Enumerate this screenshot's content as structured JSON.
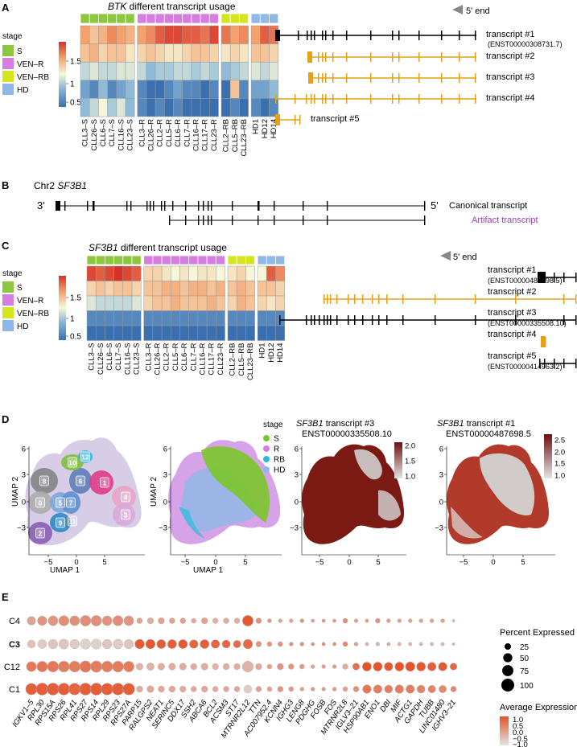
{
  "panelA": {
    "letter": "A",
    "title_gene": "BTK",
    "title_rest": " different transcript usage",
    "five_prime": "5' end",
    "legend_title": "stage",
    "legend": [
      {
        "label": "S",
        "color": "#8dc63f"
      },
      {
        "label": "VEN–R",
        "color": "#d57ee0"
      },
      {
        "label": "VEN–RB",
        "color": "#d6e61e"
      },
      {
        "label": "HD",
        "color": "#8fb8e6"
      }
    ],
    "scale_ticks": [
      "1.5",
      "1",
      "0.5"
    ],
    "groups": [
      {
        "stage": "S",
        "samples": [
          "CLL3–S",
          "CLL26–S",
          "CLL6–S",
          "CLL7–S",
          "CLL16–S",
          "CLL23–S"
        ]
      },
      {
        "stage": "VEN–R",
        "samples": [
          "CLL3–R",
          "CLL26–R",
          "CLL2–R",
          "CLL5–R",
          "CLL6–R",
          "CLL7–R",
          "CLL16–R",
          "CLL17–R",
          "CLL23–R"
        ]
      },
      {
        "stage": "VEN–RB",
        "samples": [
          "CLL2–RB",
          "CLL5–RB",
          "CLL23–RB"
        ]
      },
      {
        "stage": "HD",
        "samples": [
          "HD1",
          "HD12",
          "HD14"
        ]
      }
    ],
    "heat": [
      [
        1.5,
        1.3,
        1.4,
        1.6,
        1.5,
        1.4,
        1.5,
        1.6,
        1.8,
        1.9,
        1.9,
        1.8,
        1.8,
        1.7,
        1.9,
        1.7,
        1.5,
        1.6,
        1.5,
        1.8,
        1.7
      ],
      [
        1.3,
        1.4,
        1.2,
        1.3,
        1.3,
        1.1,
        1.2,
        1.3,
        1.2,
        1.1,
        1.1,
        1.2,
        1.3,
        1.3,
        1.2,
        1.1,
        1.2,
        1.1,
        1.3,
        1.3,
        1.2
      ],
      [
        0.8,
        0.9,
        0.8,
        0.8,
        0.9,
        0.9,
        0.8,
        0.6,
        0.7,
        0.7,
        0.8,
        0.8,
        0.7,
        0.8,
        0.7,
        0.6,
        0.7,
        0.8,
        0.9,
        0.8,
        0.9
      ],
      [
        0.5,
        0.4,
        0.6,
        0.4,
        0.5,
        0.6,
        0.4,
        0.3,
        0.3,
        0.4,
        0.5,
        0.4,
        0.4,
        0.3,
        0.4,
        0.3,
        1.3,
        0.4,
        0.5,
        0.5,
        0.6
      ],
      [
        0.6,
        0.8,
        1.0,
        0.7,
        0.9,
        0.6,
        0.4,
        0.3,
        0.4,
        0.3,
        0.4,
        0.3,
        0.3,
        0.3,
        0.3,
        0.3,
        0.4,
        0.3,
        0.4,
        0.3,
        0.4
      ]
    ],
    "transcripts": [
      {
        "label": "transcript #1",
        "id": "(ENST00000308731.7)",
        "color": "#000000"
      },
      {
        "label": "transcript #2",
        "id": "",
        "color": "#e5a119"
      },
      {
        "label": "transcript #3",
        "id": "",
        "color": "#e5a119"
      },
      {
        "label": "transcript #4",
        "id": "",
        "color": "#e5a119"
      },
      {
        "label": "transcript #5",
        "id": "",
        "color": "#e5a119"
      }
    ]
  },
  "panelB": {
    "letter": "B",
    "title_pre": "Chr2 ",
    "title_gene": "SF3B1",
    "three_prime": "3'",
    "five_prime": "5'",
    "canonical_label": "Canonical transcript",
    "artifact_label": "Artifact transcript",
    "artifact_color": "#8e44ad"
  },
  "panelC": {
    "letter": "C",
    "title_gene": "SF3B1",
    "title_rest": " different transcript usage",
    "five_prime": "5' end",
    "legend_title": "stage",
    "legend": [
      {
        "label": "S",
        "color": "#8dc63f"
      },
      {
        "label": "VEN–R",
        "color": "#d57ee0"
      },
      {
        "label": "VEN–RB",
        "color": "#d6e61e"
      },
      {
        "label": "HD",
        "color": "#8fb8e6"
      }
    ],
    "scale_ticks": [
      "1.5",
      "1",
      "0.5"
    ],
    "groups": [
      {
        "stage": "S",
        "samples": [
          "CLL3–S",
          "CLL26–S",
          "CLL6–S",
          "CLL7–S",
          "CLL16–S",
          "CLL23–S"
        ]
      },
      {
        "stage": "VEN–R",
        "samples": [
          "CLL3–R",
          "CLL26–R",
          "CLL2–R",
          "CLL5–R",
          "CLL6–R",
          "CLL7–R",
          "CLL16–R",
          "CLL17–R",
          "CLL23–R"
        ]
      },
      {
        "stage": "VEN–RB",
        "samples": [
          "CLL2–RB",
          "CLL5–RB",
          "CLL23–RB"
        ]
      },
      {
        "stage": "HD",
        "samples": [
          "HD1",
          "HD12",
          "HD14"
        ]
      }
    ],
    "heat": [
      [
        1.9,
        1.8,
        1.9,
        2.0,
        1.9,
        1.8,
        1.2,
        1.2,
        1.1,
        1.0,
        1.1,
        1.0,
        1.1,
        1.1,
        1.0,
        1.1,
        1.2,
        1.0,
        1.0,
        1.8,
        1.6
      ],
      [
        1.2,
        1.3,
        1.2,
        1.3,
        1.3,
        1.2,
        1.3,
        1.3,
        1.4,
        1.4,
        1.3,
        1.4,
        1.4,
        1.3,
        1.4,
        1.3,
        1.4,
        1.3,
        1.3,
        1.3,
        1.2
      ],
      [
        0.9,
        0.8,
        0.8,
        0.8,
        0.8,
        0.9,
        1.2,
        1.3,
        1.3,
        1.4,
        1.3,
        1.3,
        1.3,
        1.4,
        1.3,
        1.2,
        1.4,
        1.3,
        1.2,
        1.1,
        1.2
      ],
      [
        0.4,
        0.4,
        0.4,
        0.4,
        0.4,
        0.4,
        0.4,
        0.4,
        0.4,
        0.4,
        0.4,
        0.4,
        0.4,
        0.4,
        0.4,
        0.4,
        0.4,
        0.4,
        0.4,
        0.4,
        0.4
      ],
      [
        0.3,
        0.3,
        0.3,
        0.3,
        0.3,
        0.3,
        0.3,
        0.3,
        0.3,
        0.3,
        0.3,
        0.3,
        0.3,
        0.3,
        0.3,
        0.3,
        0.3,
        0.3,
        0.3,
        0.3,
        0.3
      ]
    ],
    "transcripts": [
      {
        "label": "transcript #1",
        "id": "(ENST00000487698.5)",
        "color": "#000000"
      },
      {
        "label": "transcript #2",
        "id": "",
        "color": "#e5a119"
      },
      {
        "label": "transcript #3",
        "id": "(ENST00000335508.10)",
        "color": "#000000"
      },
      {
        "label": "transcript #4",
        "id": "",
        "color": "#e5a119"
      },
      {
        "label": "transcript #5",
        "id": "(ENST00000414963.2)",
        "color": "#000000"
      }
    ]
  },
  "panelD": {
    "letter": "D",
    "xlabel": "UMAP 1",
    "ylabel": "UMAP 2",
    "xticks": [
      "−5",
      "0",
      "5"
    ],
    "yticks": [
      "6",
      "3",
      "0",
      "−3"
    ],
    "clusters": [
      "0",
      "1",
      "2",
      "3",
      "4",
      "5",
      "6",
      "7",
      "8",
      "9",
      "10",
      "11",
      "12"
    ],
    "stage_legend_title": "stage",
    "stage_legend": [
      {
        "label": "S",
        "color": "#7cc52a"
      },
      {
        "label": "R",
        "color": "#d57ee0"
      },
      {
        "label": "RB",
        "color": "#2cbcd8"
      },
      {
        "label": "HD",
        "color": "#8fb8e6"
      }
    ],
    "feature1": {
      "gene": "SF3B1",
      "line1_rest": " transcript #3",
      "line2": "ENST00000335508.10",
      "ticks": [
        "2.0",
        "1.5",
        "1.0"
      ]
    },
    "feature2": {
      "gene": "SF3B1",
      "line1_rest": " transcript #1",
      "line2": "ENST00000487698.5",
      "ticks": [
        "2.5",
        "2.0",
        "1.5",
        "1.0"
      ]
    }
  },
  "panelE": {
    "letter": "E",
    "rows": [
      "C4",
      "C3",
      "C12",
      "C1"
    ],
    "bold_row": "C3",
    "genes": [
      "IGKV1–5",
      "RPL30",
      "RPS15A",
      "RPS26",
      "RPL41",
      "RPS27",
      "RPS14",
      "RPL29",
      "RPS23",
      "RPS27A",
      "PARP15",
      "RALGPS2",
      "NEAT1",
      "SERINC5",
      "DDX17",
      "SSH2",
      "ABCA6",
      "BCL2",
      "ACSM3",
      "ST17",
      "MTRNR2L12",
      "TTN",
      "AC007952.4",
      "KCNN4",
      "IGHG3",
      "LENG8",
      "PDGHG",
      "FOSB",
      "FOS",
      "MTRNR2L8",
      "IGLV3–21",
      "HSP90AB1",
      "ENO1",
      "DBI",
      "MIF",
      "ACTG1",
      "GAPDH",
      "TUBB",
      "LINC01480",
      "IGHV3–21"
    ],
    "size_legend_title": "Percent Expressed",
    "size_legend": [
      "25",
      "50",
      "75",
      "100"
    ],
    "color_legend_title": "Average Expression",
    "color_legend": [
      "1.0",
      "0.5",
      "0.0",
      "−0.5",
      "−1.0"
    ],
    "pct": [
      [
        45,
        55,
        60,
        65,
        60,
        70,
        70,
        60,
        65,
        60,
        20,
        25,
        25,
        20,
        20,
        15,
        25,
        20,
        20,
        20,
        70,
        20,
        10,
        10,
        10,
        10,
        8,
        8,
        8,
        15,
        10,
        8,
        15,
        10,
        10,
        10,
        10,
        10,
        10,
        5
      ],
      [
        40,
        50,
        55,
        60,
        55,
        65,
        65,
        55,
        60,
        55,
        55,
        55,
        50,
        50,
        50,
        45,
        50,
        45,
        40,
        35,
        55,
        20,
        15,
        15,
        10,
        10,
        8,
        8,
        8,
        15,
        10,
        8,
        10,
        8,
        8,
        8,
        8,
        8,
        8,
        5
      ],
      [
        60,
        70,
        75,
        75,
        75,
        80,
        80,
        75,
        75,
        70,
        30,
        35,
        30,
        30,
        30,
        25,
        30,
        25,
        25,
        25,
        75,
        25,
        15,
        25,
        20,
        15,
        10,
        10,
        10,
        20,
        30,
        50,
        50,
        45,
        50,
        55,
        50,
        45,
        45,
        30
      ],
      [
        80,
        90,
        90,
        88,
        85,
        90,
        90,
        85,
        88,
        85,
        25,
        30,
        25,
        25,
        25,
        20,
        25,
        20,
        20,
        20,
        40,
        20,
        15,
        20,
        15,
        10,
        10,
        10,
        10,
        15,
        20,
        45,
        45,
        40,
        45,
        45,
        40,
        35,
        35,
        20
      ]
    ],
    "avg": [
      [
        0.0,
        0.2,
        0.2,
        0.3,
        0.3,
        0.3,
        0.3,
        0.2,
        0.3,
        0.2,
        0.0,
        -0.2,
        0.0,
        0.0,
        0.0,
        -0.2,
        0.0,
        -0.3,
        -0.2,
        -0.2,
        1.2,
        0.3,
        0.2,
        0.0,
        0.0,
        0.2,
        0.1,
        0.2,
        0.1,
        0.3,
        0.0,
        0.1,
        0.2,
        0.1,
        0.0,
        0.0,
        0.0,
        0.0,
        0.0,
        -0.3
      ],
      [
        -0.5,
        -0.7,
        -0.6,
        -0.6,
        -0.7,
        -0.8,
        -0.8,
        -0.6,
        -0.7,
        -0.6,
        1.2,
        1.2,
        1.1,
        1.1,
        1.2,
        1.0,
        1.1,
        1.0,
        1.0,
        0.9,
        0.9,
        0.2,
        0.2,
        0.2,
        0.3,
        0.3,
        0.2,
        0.3,
        0.3,
        0.4,
        0.0,
        -0.3,
        -0.3,
        -0.2,
        -0.3,
        -0.3,
        -0.3,
        -0.3,
        -0.3,
        -0.3
      ],
      [
        0.7,
        0.7,
        0.7,
        0.6,
        0.6,
        0.7,
        0.6,
        0.6,
        0.6,
        0.6,
        -0.3,
        -0.3,
        -0.2,
        -0.2,
        -0.2,
        -0.2,
        -0.2,
        -0.3,
        -0.2,
        -0.2,
        -0.3,
        -0.1,
        0.0,
        0.2,
        0.2,
        0.1,
        0.0,
        0.0,
        0.1,
        -0.2,
        0.8,
        1.3,
        1.3,
        1.2,
        1.3,
        1.3,
        1.2,
        1.1,
        1.2,
        1.0
      ],
      [
        1.1,
        1.1,
        1.1,
        1.1,
        1.0,
        1.1,
        1.1,
        1.1,
        1.1,
        1.1,
        -0.2,
        -0.1,
        -0.1,
        -0.1,
        -0.2,
        -0.1,
        -0.1,
        -0.2,
        -0.1,
        -0.1,
        -0.7,
        0.0,
        0.0,
        0.2,
        0.2,
        0.1,
        0.1,
        0.1,
        0.1,
        0.0,
        0.3,
        0.7,
        0.6,
        0.6,
        0.6,
        0.6,
        0.5,
        0.5,
        0.4,
        0.4
      ]
    ]
  }
}
